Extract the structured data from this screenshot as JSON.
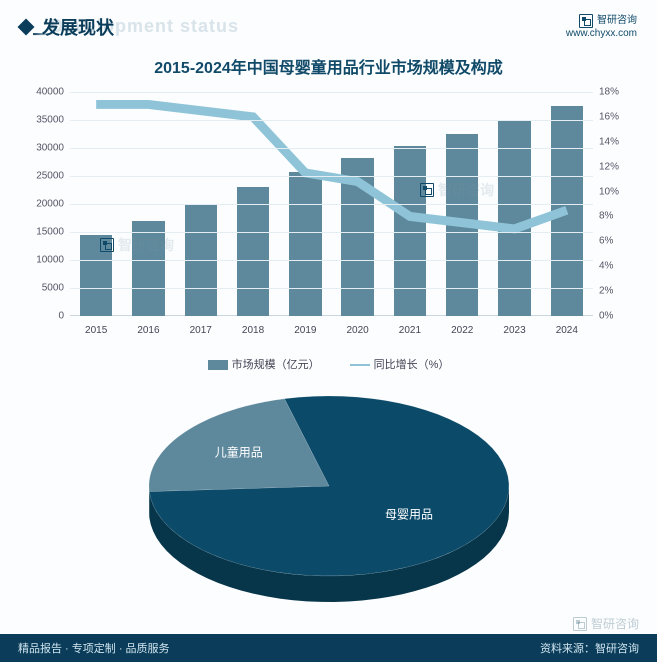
{
  "header": {
    "section_title": "发展现状",
    "section_shadow": "Development status",
    "brand_name": "智研咨询",
    "brand_url": "www.chyxx.com"
  },
  "chart": {
    "title": "2015-2024年中国母婴童用品行业市场规模及构成",
    "type": "bar+line",
    "categories": [
      "2015",
      "2016",
      "2017",
      "2018",
      "2019",
      "2020",
      "2021",
      "2022",
      "2023",
      "2024"
    ],
    "bar_values": [
      14500,
      17000,
      19800,
      23000,
      25700,
      28200,
      30300,
      32500,
      34800,
      37500
    ],
    "line_values_pct": [
      17.0,
      17.0,
      16.5,
      16.0,
      11.5,
      10.8,
      8.0,
      7.5,
      7.0,
      8.5
    ],
    "y_left": {
      "min": 0,
      "max": 40000,
      "step": 5000,
      "label_fontsize": 10
    },
    "y_right": {
      "min": 0,
      "max": 18,
      "step": 2,
      "suffix": "%",
      "label_fontsize": 10
    },
    "bar_color": "#5e889c",
    "line_color": "#8fc4d8",
    "line_width": 2,
    "background_color": "#fbfdfe",
    "grid_color": "#e4edf2",
    "legend": {
      "bar": "市场规模（亿元）",
      "line": "同比增长（%）"
    },
    "title_fontsize": 16,
    "title_color": "#114a69"
  },
  "pie": {
    "type": "pie-3d",
    "slices": [
      {
        "label": "母婴用品",
        "value": 78,
        "color": "#0b4a68",
        "side_color": "#073549"
      },
      {
        "label": "儿童用品",
        "value": 22,
        "color": "#5e889c",
        "side_color": "#4a7385"
      }
    ],
    "label_color": "#ffffff",
    "label_fontsize": 12
  },
  "footer": {
    "left": "精品报告 · 专项定制 · 品质服务",
    "right": "资料来源：智研咨询"
  },
  "watermark": "智研咨询"
}
